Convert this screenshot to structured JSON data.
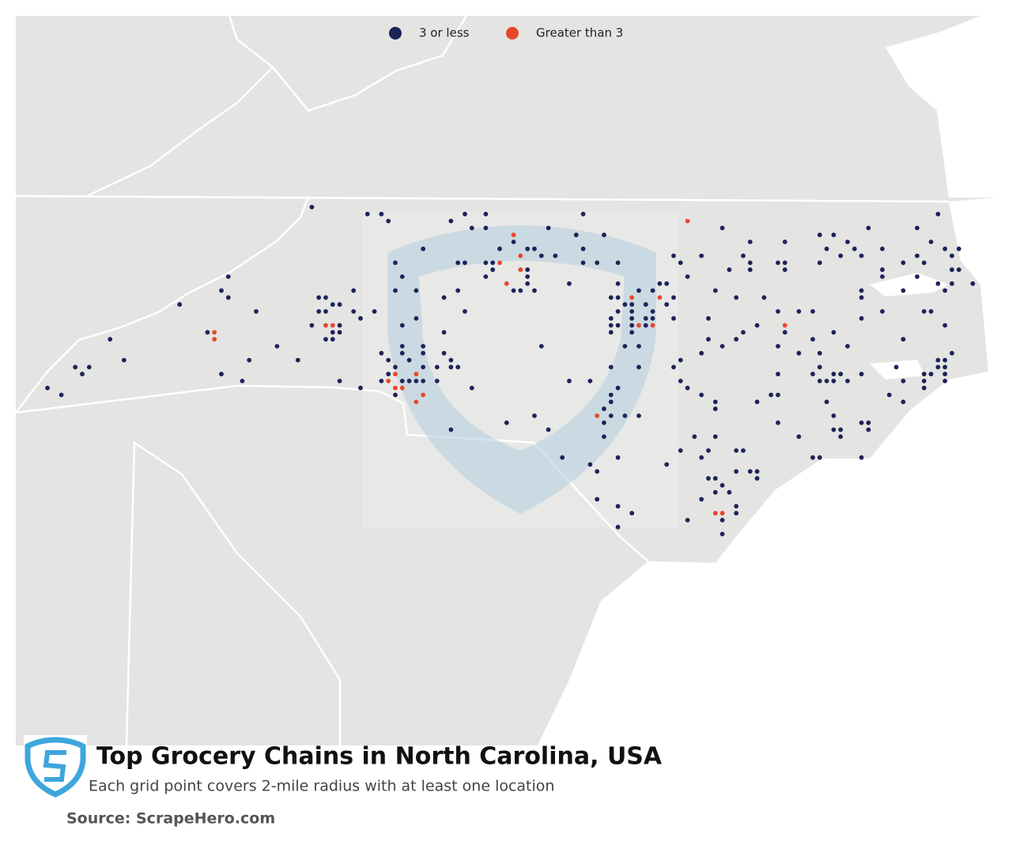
{
  "legend": {
    "items": [
      {
        "label": "3 or less",
        "color": "#1b2459"
      },
      {
        "label": "Greater than 3",
        "color": "#e8472b"
      }
    ]
  },
  "title": "Top Grocery Chains in North Carolina, USA",
  "subtitle": "Each grid point covers 2-mile radius with at least one location",
  "source": "Source: ScrapeHero.com"
}
